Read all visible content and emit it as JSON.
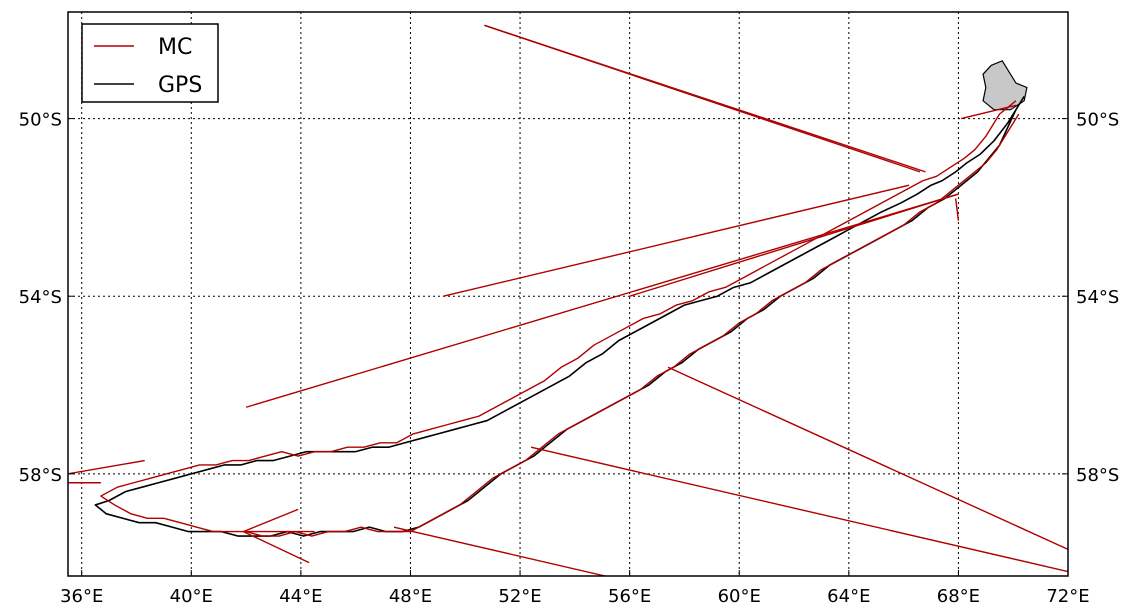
{
  "chart_data": {
    "type": "line",
    "projection": "lon-lat map",
    "xlim": [
      35.5,
      72.0
    ],
    "ylim": [
      60.3,
      47.6
    ],
    "x_ticks": [
      36,
      40,
      44,
      48,
      52,
      56,
      60,
      64,
      68,
      72
    ],
    "x_tick_labels": [
      "36°E",
      "40°E",
      "44°E",
      "48°E",
      "52°E",
      "56°E",
      "60°E",
      "64°E",
      "68°E",
      "72°E"
    ],
    "y_ticks": [
      50,
      54,
      58
    ],
    "y_tick_labels": [
      "50°S",
      "54°S",
      "58°S"
    ],
    "grid": "dotted",
    "legend": {
      "placement": "upper-left",
      "entries": [
        {
          "label": "MC",
          "color": "#b00000"
        },
        {
          "label": "GPS",
          "color": "#000000"
        }
      ]
    },
    "landmass": {
      "fill": "#c8c8c8",
      "outline": [
        [
          69.2,
          48.8
        ],
        [
          69.6,
          48.7
        ],
        [
          70.1,
          49.2
        ],
        [
          70.5,
          49.3
        ],
        [
          70.4,
          49.6
        ],
        [
          69.9,
          49.8
        ],
        [
          69.3,
          49.8
        ],
        [
          68.9,
          49.6
        ],
        [
          69.0,
          49.3
        ],
        [
          68.9,
          49.0
        ],
        [
          69.2,
          48.8
        ]
      ]
    },
    "series": [
      {
        "name": "GPS",
        "color": "#000000",
        "lon": [
          70.4,
          70.2,
          69.8,
          69.3,
          68.8,
          68.3,
          67.9,
          67.4,
          67.0,
          66.5,
          65.9,
          65.2,
          64.6,
          64.0,
          63.4,
          62.8,
          62.2,
          61.6,
          61.0,
          60.4,
          59.8,
          59.2,
          58.6,
          58.0,
          57.4,
          56.8,
          56.2,
          55.6,
          55.0,
          54.4,
          53.8,
          53.2,
          52.6,
          52.0,
          51.4,
          50.8,
          50.2,
          49.6,
          49.0,
          48.4,
          47.8,
          47.2,
          46.6,
          46.0,
          45.4,
          44.8,
          44.2,
          43.6,
          43.0,
          42.4,
          41.8,
          41.2,
          40.6,
          40.0,
          39.4,
          38.8,
          38.2,
          37.6,
          37.0,
          36.5,
          36.9,
          37.5,
          38.1,
          38.7,
          39.3,
          39.9,
          40.5,
          41.1,
          41.7,
          42.3,
          42.9,
          43.5,
          44.1,
          44.7,
          45.3,
          45.9,
          46.5,
          47.1,
          47.7,
          48.3,
          48.9,
          49.5,
          50.1,
          50.7,
          51.3,
          51.9,
          52.5,
          53.1,
          53.7,
          54.3,
          54.9,
          55.5,
          56.1,
          56.7,
          57.3,
          57.9,
          58.5,
          59.1,
          59.7,
          60.3,
          60.9,
          61.5,
          62.1,
          62.7,
          63.3,
          63.9,
          64.5,
          65.1,
          65.7,
          66.3,
          66.9,
          67.5,
          68.1,
          68.7,
          69.1,
          69.5,
          69.8,
          70.1,
          70.4
        ],
        "lat": [
          49.5,
          49.7,
          50.1,
          50.5,
          50.8,
          51.0,
          51.2,
          51.4,
          51.5,
          51.7,
          51.9,
          52.1,
          52.3,
          52.5,
          52.7,
          52.9,
          53.1,
          53.3,
          53.5,
          53.7,
          53.8,
          54.0,
          54.1,
          54.2,
          54.4,
          54.6,
          54.8,
          55.0,
          55.3,
          55.5,
          55.8,
          56.0,
          56.2,
          56.4,
          56.6,
          56.8,
          56.9,
          57.0,
          57.1,
          57.2,
          57.3,
          57.4,
          57.4,
          57.5,
          57.5,
          57.5,
          57.5,
          57.6,
          57.7,
          57.7,
          57.8,
          57.8,
          57.9,
          58.0,
          58.1,
          58.2,
          58.3,
          58.4,
          58.6,
          58.7,
          58.9,
          59.0,
          59.1,
          59.1,
          59.2,
          59.3,
          59.3,
          59.3,
          59.4,
          59.4,
          59.4,
          59.3,
          59.4,
          59.3,
          59.3,
          59.3,
          59.2,
          59.3,
          59.3,
          59.2,
          59.0,
          58.8,
          58.6,
          58.3,
          58.0,
          57.8,
          57.6,
          57.3,
          57.0,
          56.8,
          56.6,
          56.4,
          56.2,
          56.0,
          55.7,
          55.5,
          55.2,
          55.0,
          54.8,
          54.5,
          54.3,
          54.0,
          53.8,
          53.6,
          53.3,
          53.1,
          52.9,
          52.7,
          52.5,
          52.3,
          52.0,
          51.8,
          51.5,
          51.2,
          50.9,
          50.6,
          50.2,
          49.8,
          49.5
        ]
      },
      {
        "name": "MC",
        "color": "#b00000",
        "segments": [
          {
            "lon": [
              50.7,
              66.8
            ],
            "lat": [
              47.9,
              51.2
            ]
          },
          {
            "lon": [
              50.7,
              66.6
            ],
            "lat": [
              47.9,
              51.2
            ]
          },
          {
            "lon": [
              49.2,
              66.2
            ],
            "lat": [
              54.0,
              51.5
            ]
          },
          {
            "lon": [
              42.0,
              68.0
            ],
            "lat": [
              56.5,
              51.7
            ]
          },
          {
            "lon": [
              56.0,
              68.0
            ],
            "lat": [
              54.0,
              51.7
            ]
          },
          {
            "lon": [
              57.4,
              72.0
            ],
            "lat": [
              55.6,
              59.7
            ]
          },
          {
            "lon": [
              52.4,
              72.0
            ],
            "lat": [
              57.4,
              60.2
            ]
          },
          {
            "lon": [
              47.4,
              55.1
            ],
            "lat": [
              59.2,
              60.3
            ]
          },
          {
            "lon": [
              41.9,
              43.9
            ],
            "lat": [
              59.3,
              58.8
            ]
          },
          {
            "lon": [
              41.9,
              44.5
            ],
            "lat": [
              59.3,
              59.3
            ]
          },
          {
            "lon": [
              41.9,
              44.3
            ],
            "lat": [
              59.3,
              60.0
            ]
          },
          {
            "lon": [
              35.5,
              38.3
            ],
            "lat": [
              58.0,
              57.7
            ]
          },
          {
            "lon": [
              35.5,
              36.7
            ],
            "lat": [
              58.2,
              58.2
            ]
          },
          {
            "lon": [
              67.9,
              68.0
            ],
            "lat": [
              51.8,
              52.3
            ]
          },
          {
            "lon": [
              68.1,
              70.1
            ],
            "lat": [
              50.0,
              49.7
            ]
          }
        ],
        "lon": [
          70.1,
          69.5,
          69.0,
          68.6,
          68.2,
          67.7,
          67.2,
          66.7,
          66.1,
          65.5,
          64.9,
          64.3,
          63.7,
          63.1,
          62.5,
          61.9,
          61.3,
          60.7,
          60.1,
          59.5,
          58.9,
          58.3,
          57.7,
          57.1,
          56.5,
          55.9,
          55.3,
          54.7,
          54.1,
          53.5,
          52.9,
          52.3,
          51.7,
          51.1,
          50.5,
          49.9,
          49.3,
          48.7,
          48.1,
          47.5,
          46.9,
          46.3,
          45.7,
          45.1,
          44.5,
          43.9,
          43.3,
          42.7,
          42.1,
          41.5,
          40.9,
          40.3,
          39.7,
          39.1,
          38.5,
          37.9,
          37.3,
          36.7,
          37.2,
          37.8,
          38.4,
          39.0,
          39.6,
          40.2,
          40.8,
          41.4,
          42.0,
          42.6,
          43.2,
          43.8,
          44.4,
          45.0,
          45.6,
          46.2,
          46.8,
          47.4,
          48.0,
          48.6,
          49.2,
          49.8,
          50.4,
          51.0,
          51.6,
          52.2,
          52.8,
          53.4,
          54.0,
          54.6,
          55.2,
          55.8,
          56.4,
          57.0,
          57.6,
          58.2,
          58.8,
          59.4,
          60.0,
          60.6,
          61.2,
          61.8,
          62.4,
          63.0,
          63.6,
          64.2,
          64.8,
          65.4,
          66.0,
          66.6,
          67.2,
          67.8,
          68.4,
          69.0,
          69.4,
          69.8,
          70.2
        ],
        "lat": [
          49.6,
          49.9,
          50.4,
          50.7,
          50.9,
          51.1,
          51.3,
          51.4,
          51.6,
          51.8,
          52.0,
          52.2,
          52.4,
          52.6,
          52.8,
          53.0,
          53.2,
          53.4,
          53.6,
          53.8,
          53.9,
          54.1,
          54.2,
          54.4,
          54.5,
          54.7,
          54.9,
          55.1,
          55.4,
          55.6,
          55.9,
          56.1,
          56.3,
          56.5,
          56.7,
          56.8,
          56.9,
          57.0,
          57.1,
          57.3,
          57.3,
          57.4,
          57.4,
          57.5,
          57.5,
          57.6,
          57.5,
          57.6,
          57.7,
          57.7,
          57.8,
          57.8,
          57.9,
          58.0,
          58.1,
          58.2,
          58.3,
          58.5,
          58.7,
          58.9,
          59.0,
          59.0,
          59.1,
          59.2,
          59.3,
          59.3,
          59.3,
          59.4,
          59.4,
          59.3,
          59.4,
          59.3,
          59.3,
          59.2,
          59.3,
          59.3,
          59.3,
          59.1,
          58.9,
          58.7,
          58.4,
          58.1,
          57.9,
          57.7,
          57.4,
          57.1,
          56.9,
          56.7,
          56.5,
          56.3,
          56.1,
          55.8,
          55.6,
          55.3,
          55.1,
          54.9,
          54.6,
          54.4,
          54.1,
          53.9,
          53.7,
          53.4,
          53.2,
          53.0,
          52.8,
          52.6,
          52.4,
          52.1,
          51.9,
          51.6,
          51.3,
          51.0,
          50.7,
          50.3,
          49.9,
          49.6
        ]
      }
    ]
  }
}
